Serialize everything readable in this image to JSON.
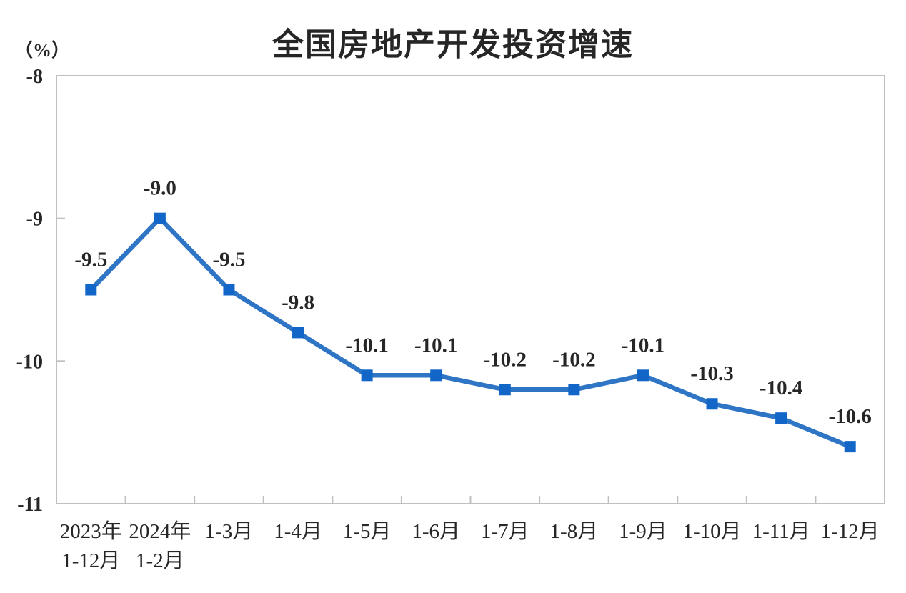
{
  "chart_data": {
    "type": "line",
    "title": "全国房地产开发投资增速",
    "unit_label": "（%）",
    "categories": [
      [
        "2023年",
        "1-12月"
      ],
      [
        "2024年",
        "1-2月"
      ],
      [
        "1-3月"
      ],
      [
        "1-4月"
      ],
      [
        "1-5月"
      ],
      [
        "1-6月"
      ],
      [
        "1-7月"
      ],
      [
        "1-8月"
      ],
      [
        "1-9月"
      ],
      [
        "1-10月"
      ],
      [
        "1-11月"
      ],
      [
        "1-12月"
      ]
    ],
    "series": [
      {
        "name": "全国房地产开发投资增速",
        "values": [
          -9.5,
          -9.0,
          -9.5,
          -9.8,
          -10.1,
          -10.1,
          -10.2,
          -10.2,
          -10.1,
          -10.3,
          -10.4,
          -10.6
        ],
        "point_labels": [
          "-9.5",
          "-9.0",
          "-9.5",
          "-9.8",
          "-10.1",
          "-10.1",
          "-10.2",
          "-10.2",
          "-10.1",
          "-10.3",
          "-10.4",
          "-10.6"
        ]
      }
    ],
    "ylim": [
      -11,
      -8
    ],
    "y_ticks": [
      -8,
      -9,
      -10,
      -11
    ],
    "y_tick_labels": [
      "-8",
      "-9",
      "-10",
      "-11"
    ],
    "grid": false,
    "legend": "none",
    "marker": "square",
    "colors": {
      "line": "#2F75C5",
      "marker": "#1166C8",
      "axis": "#BFBFBF",
      "text": "#262626"
    }
  }
}
